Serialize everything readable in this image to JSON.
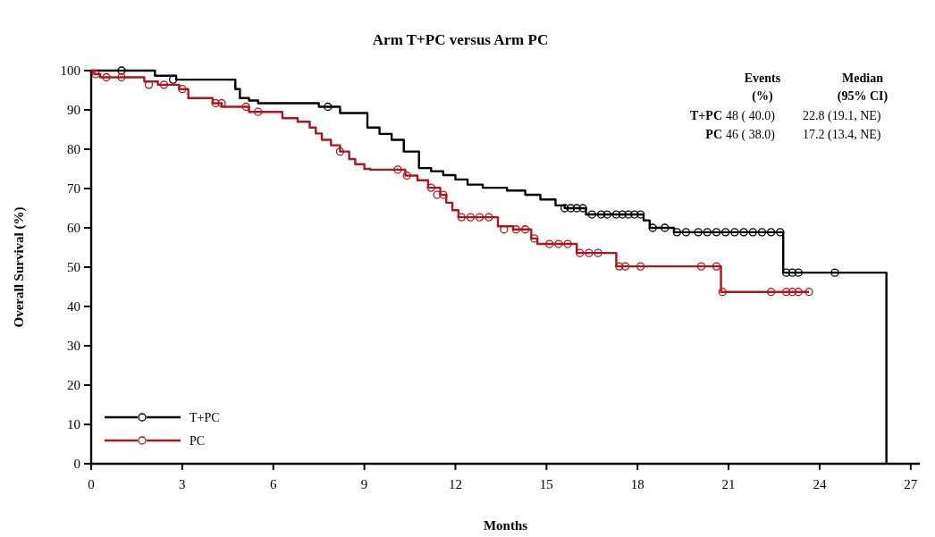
{
  "chart_data": {
    "type": "step",
    "title": "Arm T+PC versus Arm PC",
    "xlabel": "Months",
    "ylabel": "Overall Survival (%)",
    "xlim": [
      0,
      27.3
    ],
    "xticks": [
      0,
      3,
      6,
      9,
      12,
      15,
      18,
      21,
      24,
      27
    ],
    "ylim": [
      0,
      100
    ],
    "yticks": [
      0,
      10,
      20,
      30,
      40,
      50,
      60,
      70,
      80,
      90,
      100
    ],
    "grid": false,
    "legend": "bottom left",
    "line_style": "solid",
    "annotations": [
      "Events",
      "(%)",
      "Median",
      "(95% CI)",
      "T+PC",
      "48 ( 40.0)",
      "22.8 (19.1, NE)",
      "PC",
      "46 ( 38.0)",
      "17.2 (13.4, NE)"
    ],
    "series": [
      {
        "name": "T+PC",
        "color": "#000000",
        "x": [
          0,
          2.1,
          2.8,
          4.75,
          4.9,
          5.2,
          5.5,
          7.5,
          8.2,
          9.1,
          9.5,
          9.9,
          10.3,
          10.8,
          11.2,
          11.6,
          12.0,
          12.4,
          12.9,
          13.7,
          14.3,
          14.8,
          15.3,
          15.6,
          16.3,
          18.2,
          18.4,
          19.2,
          22.8,
          26.2,
          26.2
        ],
        "values": [
          100,
          98.7,
          97.7,
          95.3,
          93.0,
          92.4,
          91.7,
          90.8,
          89.2,
          85.5,
          83.9,
          82.4,
          79.4,
          75.2,
          74.4,
          73.4,
          72.3,
          71.0,
          70.2,
          69.5,
          68.4,
          67.2,
          65.7,
          65.0,
          63.4,
          61.9,
          60.0,
          58.9,
          48.6,
          48.6,
          0
        ]
      },
      {
        "name": "PC",
        "color": "#b0141c",
        "x": [
          0,
          0.1,
          0.3,
          1.75,
          2.2,
          2.9,
          3.2,
          4.0,
          4.3,
          5.2,
          6.3,
          6.8,
          7.2,
          7.4,
          7.6,
          7.9,
          8.2,
          8.5,
          8.7,
          9.0,
          9.2,
          10.35,
          10.75,
          11.1,
          11.5,
          11.7,
          11.9,
          12.1,
          13.4,
          13.9,
          14.5,
          14.7,
          16.0,
          17.3,
          20.75,
          23.65
        ],
        "values": [
          100,
          99.1,
          98.3,
          97.2,
          96.4,
          95.3,
          93.0,
          91.7,
          90.8,
          89.5,
          87.9,
          87.0,
          85.5,
          84.0,
          82.4,
          81.0,
          79.4,
          77.5,
          76.2,
          75.0,
          74.8,
          73.3,
          72.1,
          70.2,
          68.4,
          66.4,
          64.5,
          62.7,
          60.4,
          59.6,
          57.3,
          55.9,
          53.6,
          50.2,
          43.7,
          43.7
        ]
      },
      {
        "type": "scatter",
        "marker": "circle",
        "color": "#000000",
        "x": [
          1.0,
          2.7,
          7.8,
          15.6,
          15.8,
          16.0,
          16.2,
          16.5,
          16.8,
          17.0,
          17.3,
          17.5,
          17.7,
          17.9,
          18.1,
          18.5,
          18.9,
          19.3,
          19.6,
          20.0,
          20.3,
          20.6,
          20.9,
          21.2,
          21.5,
          21.8,
          22.1,
          22.4,
          22.7,
          22.9,
          23.1,
          23.3,
          24.5
        ],
        "values": [
          100,
          97.7,
          90.8,
          65.0,
          65.0,
          65.0,
          65.0,
          63.4,
          63.4,
          63.4,
          63.4,
          63.4,
          63.4,
          63.4,
          63.4,
          60.0,
          60.0,
          58.9,
          58.9,
          58.9,
          58.9,
          58.9,
          58.9,
          58.9,
          58.9,
          58.9,
          58.9,
          58.9,
          58.9,
          48.6,
          48.6,
          48.6,
          48.6
        ]
      },
      {
        "type": "scatter",
        "marker": "circle",
        "color": "#b0141c",
        "x": [
          0.15,
          0.5,
          1.0,
          1.9,
          2.4,
          3.0,
          4.1,
          4.3,
          5.1,
          5.5,
          8.2,
          10.1,
          10.4,
          11.2,
          11.4,
          11.6,
          12.2,
          12.5,
          12.8,
          13.1,
          13.6,
          14.0,
          14.3,
          14.6,
          15.1,
          15.4,
          15.7,
          16.1,
          16.4,
          16.7,
          17.4,
          17.6,
          18.1,
          20.1,
          20.6,
          20.8,
          22.4,
          22.9,
          23.1,
          23.3,
          23.65
        ],
        "values": [
          99.1,
          98.3,
          98.3,
          96.4,
          96.4,
          95.3,
          91.7,
          91.7,
          90.8,
          89.5,
          79.4,
          74.8,
          73.3,
          70.2,
          68.4,
          68.4,
          62.7,
          62.7,
          62.7,
          62.7,
          59.6,
          59.6,
          59.6,
          57.3,
          55.9,
          55.9,
          55.9,
          53.6,
          53.6,
          53.6,
          50.2,
          50.2,
          50.2,
          50.2,
          50.2,
          43.7,
          43.7,
          43.7,
          43.7,
          43.7,
          43.7
        ]
      }
    ]
  }
}
